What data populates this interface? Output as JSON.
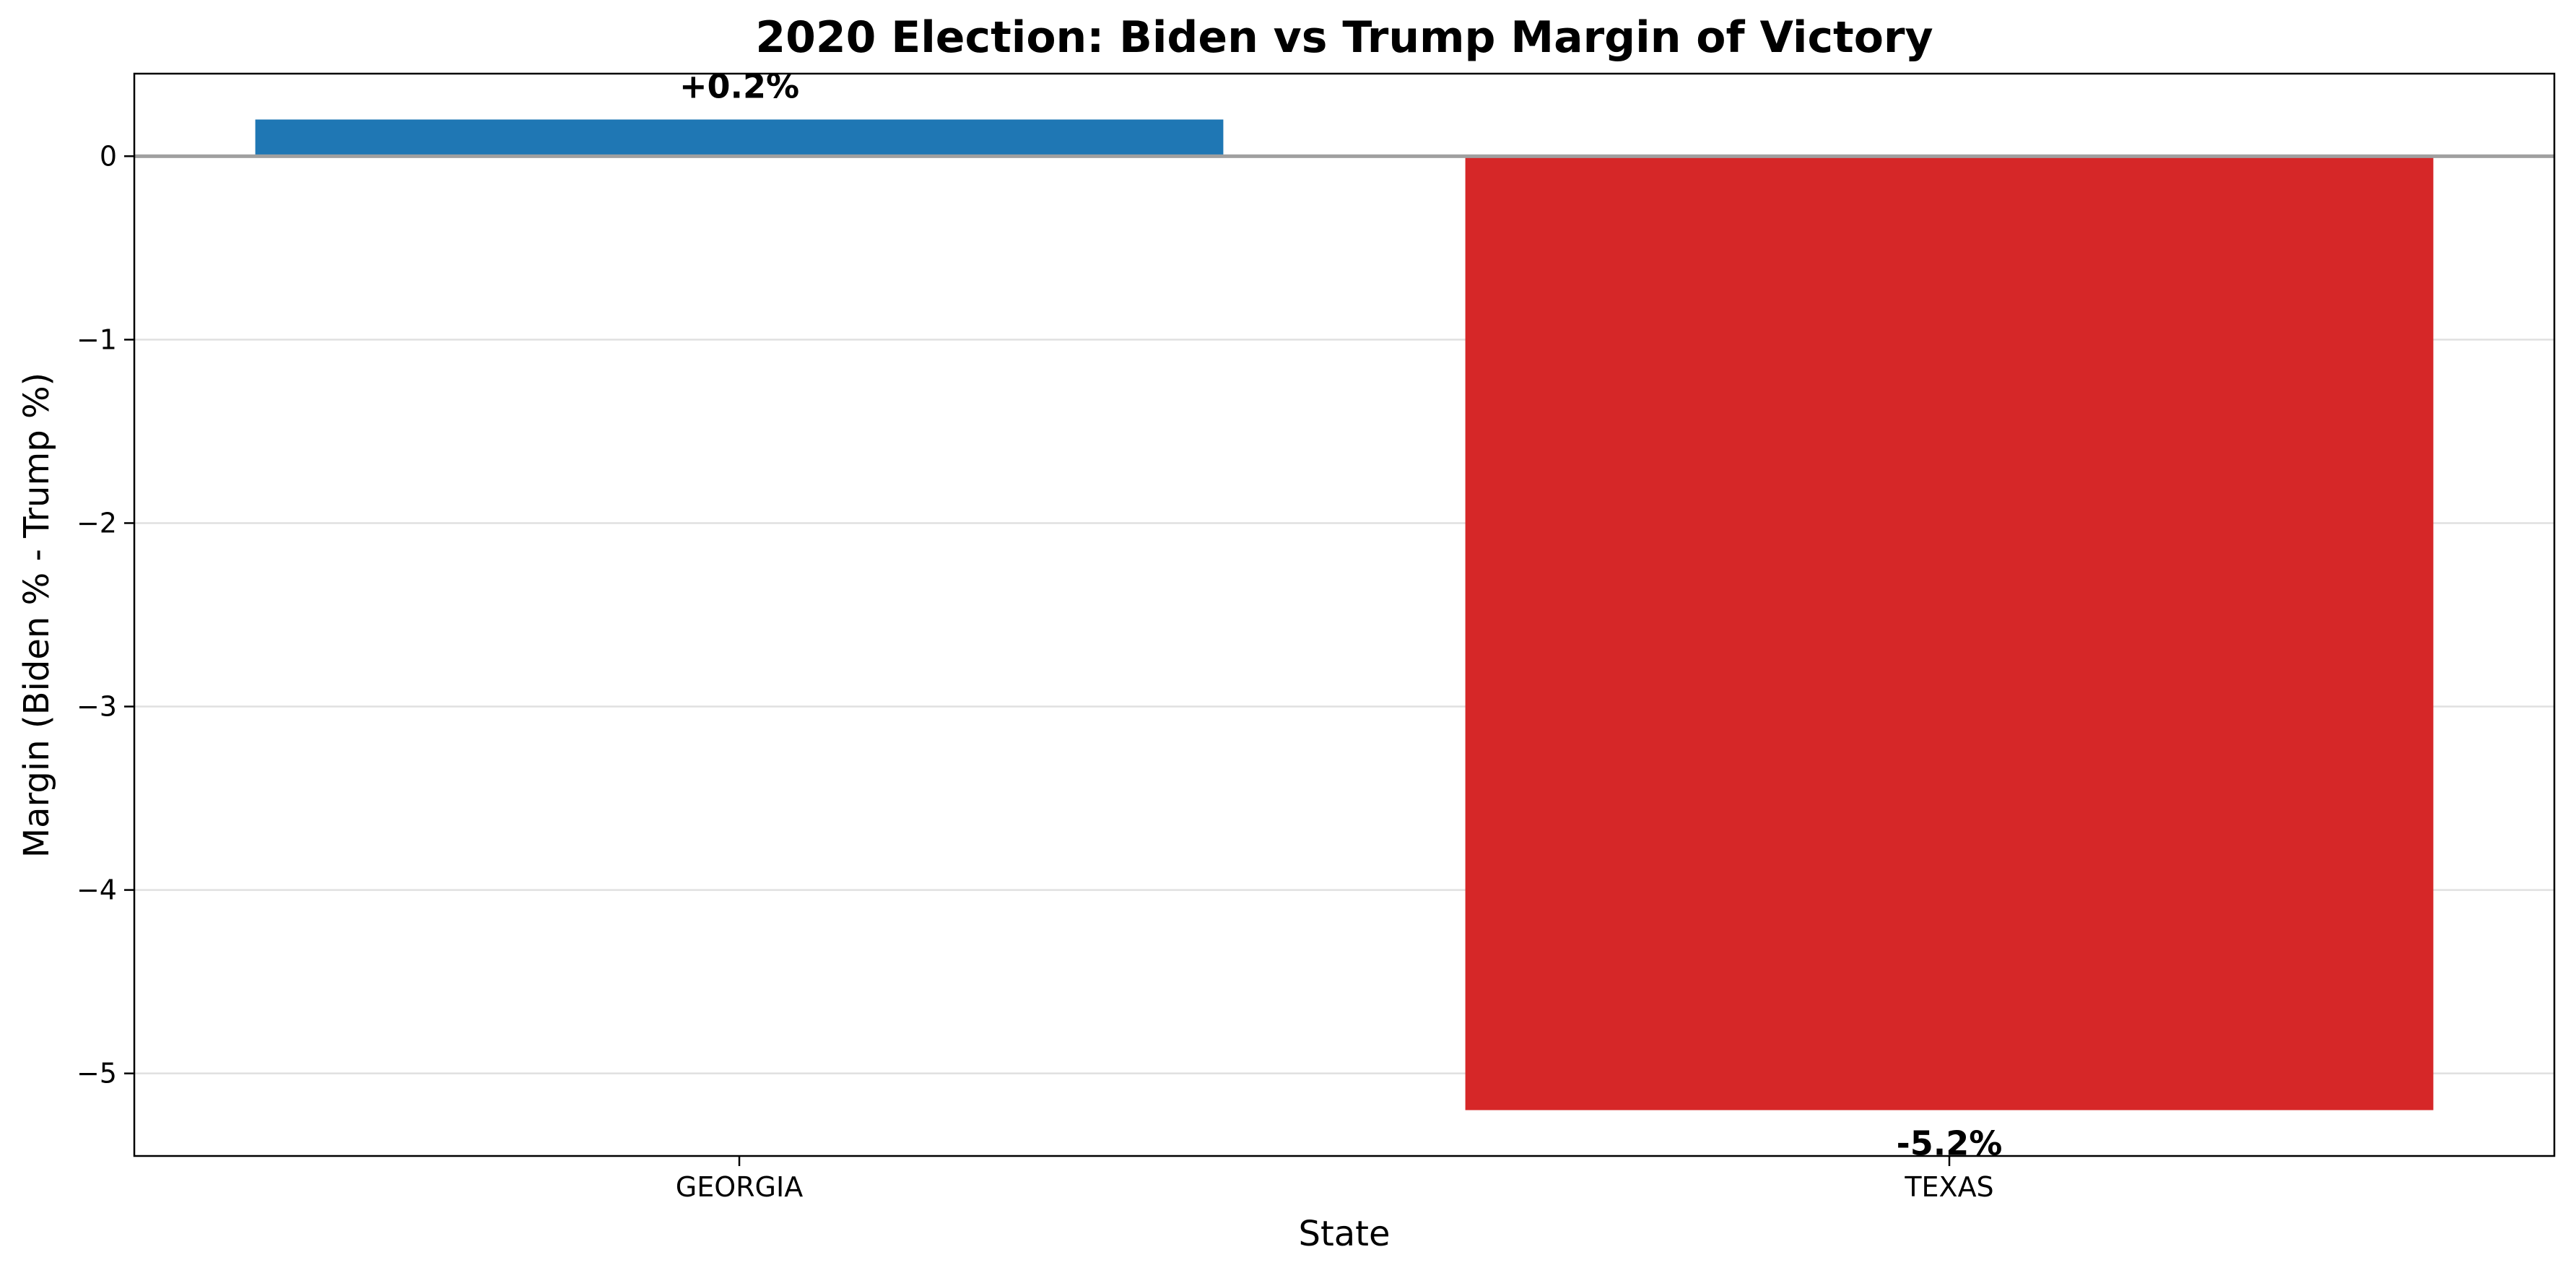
{
  "chart_data": {
    "type": "bar",
    "title": "2020 Election: Biden vs Trump Margin of Victory",
    "xlabel": "State",
    "ylabel": "Margin (Biden % - Trump %)",
    "categories": [
      "GEORGIA",
      "TEXAS"
    ],
    "values": [
      0.2,
      -5.2
    ],
    "data_labels": [
      "+0.2%",
      "-5.2%"
    ],
    "bar_colors": [
      "#1f77b4",
      "#d62728"
    ],
    "ylim": [
      -5.45,
      0.45
    ],
    "yticks": [
      0,
      -1,
      -2,
      -3,
      -4,
      -5
    ],
    "ytick_labels": [
      "0",
      "−1",
      "−2",
      "−3",
      "−4",
      "−5"
    ],
    "grid": "horizontal",
    "zero_line_color": "#a0a0a0",
    "legend": "none"
  }
}
